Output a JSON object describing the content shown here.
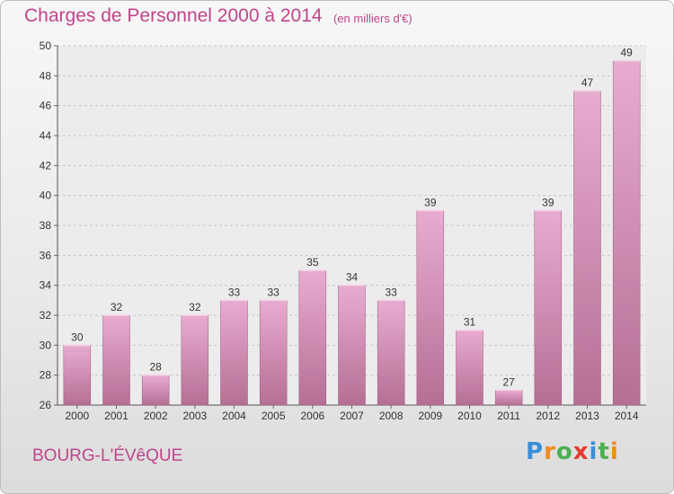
{
  "title": "Charges de Personnel 2000 à 2014",
  "subtitle": "(en milliers d'€)",
  "place": "BOURG-L'ÉVêQUE",
  "logo": {
    "letters": [
      "P",
      "r",
      "o",
      "x",
      "i",
      "t",
      "i"
    ],
    "colors": [
      "#3a8fd6",
      "#f08a1c",
      "#4caf50",
      "#e23a2f",
      "#3a8fd6",
      "#4caf50",
      "#f08a1c"
    ]
  },
  "colors": {
    "bar": "#d986b2",
    "bar_light": "#e8acd0",
    "bar_dark": "#b56f95",
    "title": "#c0458a"
  },
  "chart_data": {
    "type": "bar",
    "categories": [
      "2000",
      "2001",
      "2002",
      "2003",
      "2004",
      "2005",
      "2006",
      "2007",
      "2008",
      "2009",
      "2010",
      "2011",
      "2012",
      "2013",
      "2014"
    ],
    "values": [
      30,
      32,
      28,
      32,
      33,
      33,
      35,
      34,
      33,
      39,
      31,
      27,
      39,
      47,
      49
    ],
    "ylim": [
      26,
      50
    ],
    "yticks": [
      26,
      28,
      30,
      32,
      34,
      36,
      38,
      40,
      42,
      44,
      46,
      48,
      50
    ],
    "grid": true,
    "title": "Charges de Personnel 2000 à 2014",
    "xlabel": "",
    "ylabel": ""
  }
}
